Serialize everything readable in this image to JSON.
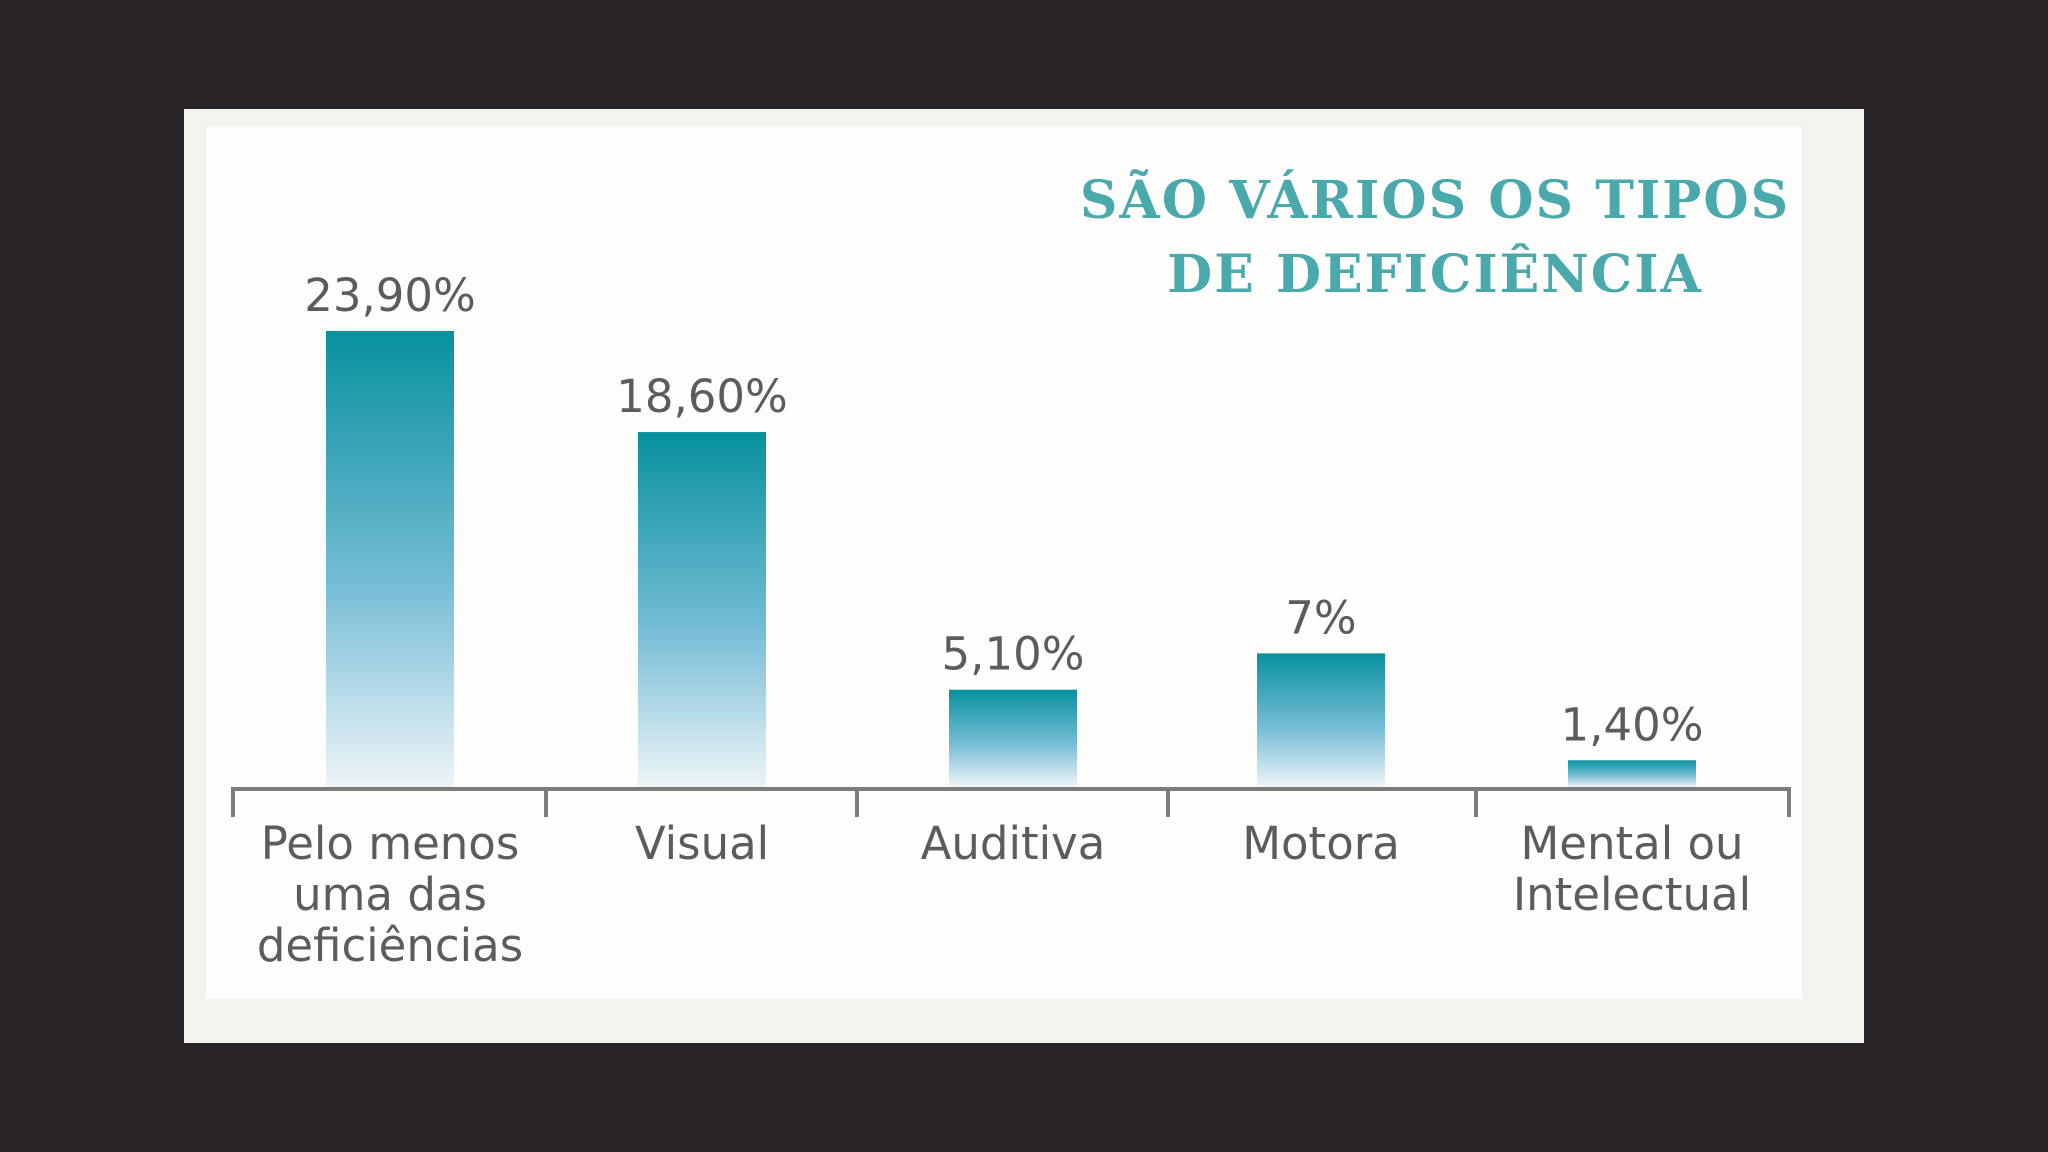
{
  "chart_data": {
    "type": "bar",
    "title_lines": [
      "SÃO VÁRIOS OS TIPOS",
      "DE DEFICIÊNCIA"
    ],
    "categories": [
      [
        "Pelo menos",
        "uma das",
        "deficiências"
      ],
      [
        "Visual"
      ],
      [
        "Auditiva"
      ],
      [
        "Motora"
      ],
      [
        "Mental ou",
        "Intelectual"
      ]
    ],
    "values": [
      23.9,
      18.6,
      5.1,
      7,
      1.4
    ],
    "value_labels": [
      "23,90%",
      "18,60%",
      "5,10%",
      "7%",
      "1,40%"
    ],
    "xlabel": "",
    "ylabel": "",
    "ylim": [
      0,
      24
    ],
    "grid": false,
    "legend": "none",
    "colors": {
      "bar_top": "#07919d",
      "bar_mid": "#74bcd6",
      "bar_bottom": "#eef5f8",
      "title": "#4aa9ad",
      "text": "#5a5c5e",
      "axis": "#7a7c7e"
    }
  }
}
